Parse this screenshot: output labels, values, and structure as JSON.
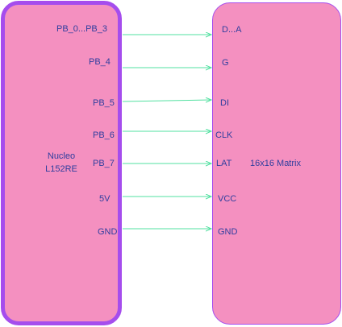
{
  "left": {
    "line1": "Nucleo",
    "line2": "L152RE"
  },
  "right": {
    "title": "16x16 Matrix"
  },
  "connections": [
    {
      "from": "PB_0...PB_3",
      "to": "D...A"
    },
    {
      "from": "PB_4",
      "to": "G"
    },
    {
      "from": "PB_5",
      "to": "DI"
    },
    {
      "from": "PB_6",
      "to": "CLK"
    },
    {
      "from": "PB_7",
      "to": "LAT"
    },
    {
      "from": "5V",
      "to": "VCC"
    },
    {
      "from": "GND",
      "to": "GND"
    }
  ],
  "colors": {
    "block_fill": "#f490c0",
    "block_border": "#a54ded",
    "wire": "#52e0a0",
    "text": "#2f3e9e"
  }
}
